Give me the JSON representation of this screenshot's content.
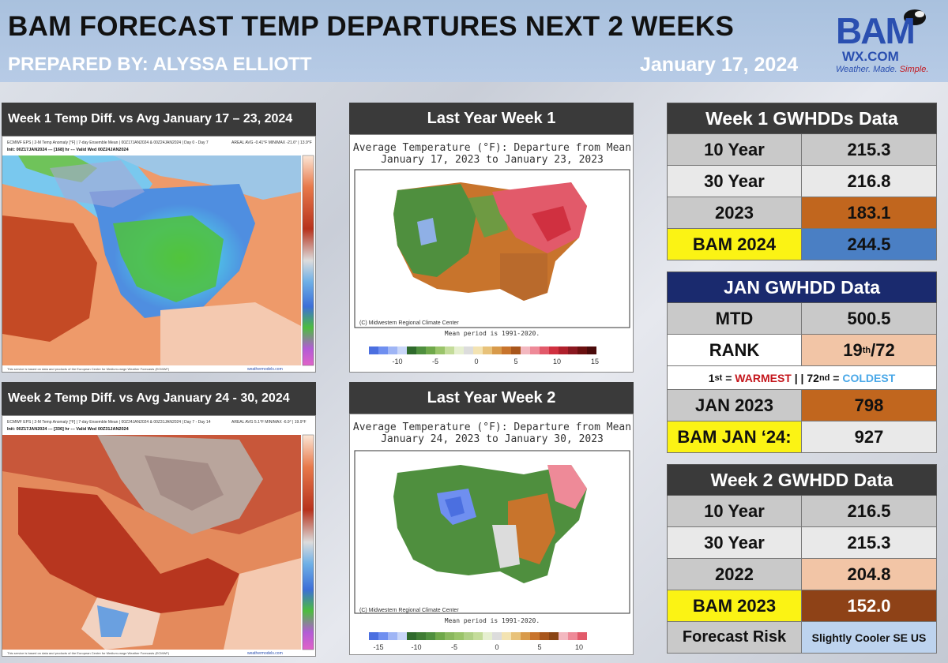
{
  "header": {
    "title": "BAM FORECAST TEMP DEPARTURES NEXT 2 WEEKS",
    "prepared_by": "PREPARED BY: ALYSSA ELLIOTT",
    "date": "January 17, 2024",
    "logo": {
      "text_bam": "BAM",
      "text_wx": "WX.COM",
      "tagline_a": "Weather. Made. ",
      "tagline_b": "Simple."
    }
  },
  "maps": {
    "week1": {
      "title": "Week 1 Temp Diff. vs Avg January 17 – 23, 2024",
      "model_line1": "ECMWF EPS | 2-M Temp Anomaly [°F] | 7-day Ensemble Mean | 00Z17JAN2024 & 00Z24JAN2024 | Day 0 - Day 7",
      "model_line2": "Init: 00Z17JAN2024 --- [168] hr --- Valid Wed 00Z24JAN2024",
      "stats": "AREAL AVG -0.41°F  MIN/MAX -21.6° | 13.9°F",
      "footer_left": "This service is based on data and products of the European Centre for Medium-range Weather Forecasts (ECMWF)",
      "footer_right": "weathermodels.com",
      "colorbar_ticks": [
        "26",
        "23",
        "20",
        "17",
        "14",
        "11",
        "8",
        "5",
        "2",
        "-2",
        "-5",
        "-8",
        "-11",
        "-14",
        "-17",
        "-20",
        "-23",
        "-26",
        "-29"
      ]
    },
    "week2": {
      "title": "Week 2 Temp Diff. vs Avg January 24 - 30, 2024",
      "model_line1": "ECMWF EPS | 2-M Temp Anomaly [°F] | 7-day Ensemble Mean | 00Z24JAN2024 & 00Z31JAN2024 | Day 7 - Day 14",
      "model_line2": "Init: 00Z17JAN2024 --- [336] hr --- Valid Wed 00Z31JAN2024",
      "stats": "AREAL AVG 5.1°F  MIN/MAX -6.9° | 19.9°F",
      "footer_left": "This service is based on data and products of the European Centre for Medium-range Weather Forecasts (ECMWF)",
      "footer_right": "weathermodels.com",
      "colorbar_ticks": [
        "26",
        "23",
        "20",
        "17",
        "14",
        "11",
        "8",
        "5",
        "2",
        "-2",
        "-5",
        "-8",
        "-11",
        "-14",
        "-17",
        "-20",
        "-23",
        "-26",
        "-29"
      ]
    },
    "lastyear1": {
      "title": "Last Year Week 1",
      "chart_title1": "Average Temperature (°F): Departure from Mean",
      "chart_title2": "January 17, 2023 to January 23, 2023",
      "credit": "(C) Midwestern Regional Climate Center",
      "mean_period": "Mean period is 1991-2020.",
      "legend_ticks": [
        "-10",
        "-5",
        "0",
        "5",
        "10",
        "15"
      ]
    },
    "lastyear2": {
      "title": "Last Year Week 2",
      "chart_title1": "Average Temperature (°F): Departure from Mean",
      "chart_title2": "January 24, 2023 to January 30, 2023",
      "credit": "(C) Midwestern Regional Climate Center",
      "mean_period": "Mean period is 1991-2020.",
      "legend_ticks": [
        "-15",
        "-10",
        "-5",
        "0",
        "5",
        "10"
      ]
    }
  },
  "tables": {
    "week1": {
      "title": "Week 1 GWHDDs Data",
      "rows": [
        {
          "label": "10 Year",
          "value": "215.3"
        },
        {
          "label": "30 Year",
          "value": "216.8"
        },
        {
          "label": "2023",
          "value": "183.1"
        },
        {
          "label": "BAM 2024",
          "value": "244.5"
        }
      ]
    },
    "jan": {
      "title": "JAN GWHDD Data",
      "mtd_label": "MTD",
      "mtd_value": "500.5",
      "rank_label": "RANK",
      "rank_num": "19",
      "rank_sup": "th",
      "rank_total": "/72",
      "note_a": "1",
      "note_a_sup": "st",
      "note_b": " = ",
      "note_warm": "WARMEST",
      "note_sep": " | | 72",
      "note_sep_sup": "nd",
      "note_c": " = ",
      "note_cold": "COLDEST",
      "jan2023_label": "JAN 2023",
      "jan2023_value": "798",
      "bamjan_label": "BAM JAN ‘24:",
      "bamjan_value": "927"
    },
    "week2": {
      "title": "Week 2 GWHDD Data",
      "rows": [
        {
          "label": "10 Year",
          "value": "216.5"
        },
        {
          "label": "30 Year",
          "value": "215.3"
        },
        {
          "label": "2022",
          "value": "204.8"
        },
        {
          "label": "BAM 2023",
          "value": "152.0"
        },
        {
          "label": "Forecast Risk",
          "value": "Slightly Cooler SE US"
        }
      ]
    }
  },
  "colors": {
    "grey_cell": "#c9c9c9",
    "light_cell": "#e9e9e9",
    "orange_cell": "#c1661e",
    "peach_cell": "#f2c5a6",
    "brown_cell": "#8e4217",
    "yellow_cell": "#fbf314",
    "blue_cell": "#4a7fc4",
    "navy_header": "#1a2a6e",
    "dark_header": "#3a3a3a"
  }
}
